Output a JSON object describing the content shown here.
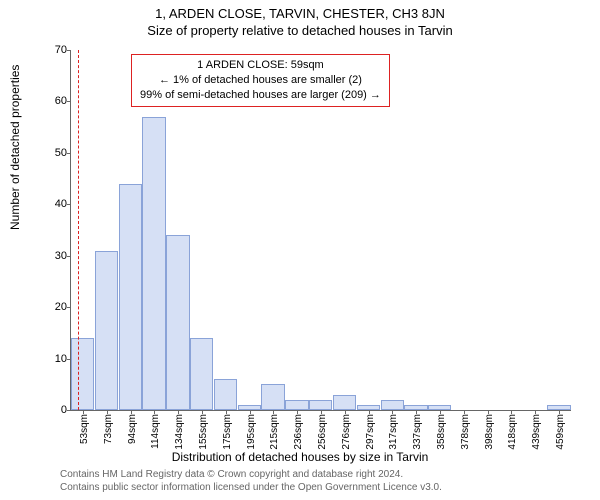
{
  "title": "1, ARDEN CLOSE, TARVIN, CHESTER, CH3 8JN",
  "subtitle": "Size of property relative to detached houses in Tarvin",
  "ylabel": "Number of detached properties",
  "xlabel": "Distribution of detached houses by size in Tarvin",
  "chart": {
    "type": "histogram",
    "ylim": [
      0,
      70
    ],
    "ytick_step": 10,
    "background_color": "#ffffff",
    "bar_fill": "#d6e0f5",
    "bar_stroke": "#8aa3d8",
    "axis_color": "#666666",
    "x_categories": [
      "53sqm",
      "73sqm",
      "94sqm",
      "114sqm",
      "134sqm",
      "155sqm",
      "175sqm",
      "195sqm",
      "215sqm",
      "236sqm",
      "256sqm",
      "276sqm",
      "297sqm",
      "317sqm",
      "337sqm",
      "358sqm",
      "378sqm",
      "398sqm",
      "418sqm",
      "439sqm",
      "459sqm"
    ],
    "values": [
      14,
      31,
      44,
      57,
      34,
      14,
      6,
      1,
      5,
      2,
      2,
      3,
      1,
      2,
      1,
      1,
      0,
      0,
      0,
      0,
      1
    ],
    "reference_index": 0,
    "reference_color": "#dd2222"
  },
  "annotation": {
    "line1": "1 ARDEN CLOSE: 59sqm",
    "line2": "← 1% of detached houses are smaller (2)",
    "line3": "99% of semi-detached houses are larger (209) →",
    "border_color": "#dd2222"
  },
  "footer": {
    "line1": "Contains HM Land Registry data © Crown copyright and database right 2024.",
    "line2": "Contains public sector information licensed under the Open Government Licence v3.0."
  }
}
